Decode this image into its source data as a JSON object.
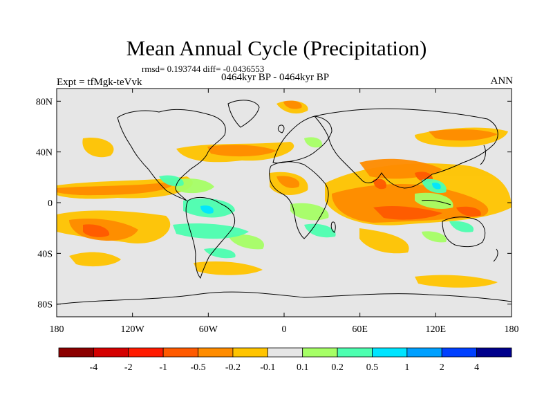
{
  "header": {
    "title": "Mean Annual Cycle (Precipitation)",
    "stats": "rmsd= 0.193744 diff= -0.0436553",
    "experiment": "Expt = tfMgk-teVvk",
    "period": "0464kyr BP - 0464kyr BP",
    "season": "ANN"
  },
  "map": {
    "projection": "cylindrical equidistant",
    "lon_range": [
      -180,
      180
    ],
    "lat_range": [
      -90,
      90
    ],
    "x_tick_labels": [
      "180",
      "120W",
      "60W",
      "0",
      "60E",
      "120E",
      "180"
    ],
    "y_tick_labels": [
      "80N",
      "40N",
      "0",
      "40S",
      "80S"
    ],
    "background_color": "#e6e6e6",
    "coastline_color": "#000000"
  },
  "colorbar": {
    "labels": [
      "-4",
      "-2",
      "-1",
      "-0.5",
      "-0.2",
      "-0.1",
      "0.1",
      "0.2",
      "0.5",
      "1",
      "2",
      "4"
    ],
    "colors": [
      "#8b0000",
      "#d40000",
      "#ff1a00",
      "#ff5a00",
      "#ff8c00",
      "#ffc400",
      "#e6e6e6",
      "#a6ff66",
      "#4dffb0",
      "#00e5ff",
      "#00a0ff",
      "#0040ff",
      "#00008b"
    ]
  }
}
